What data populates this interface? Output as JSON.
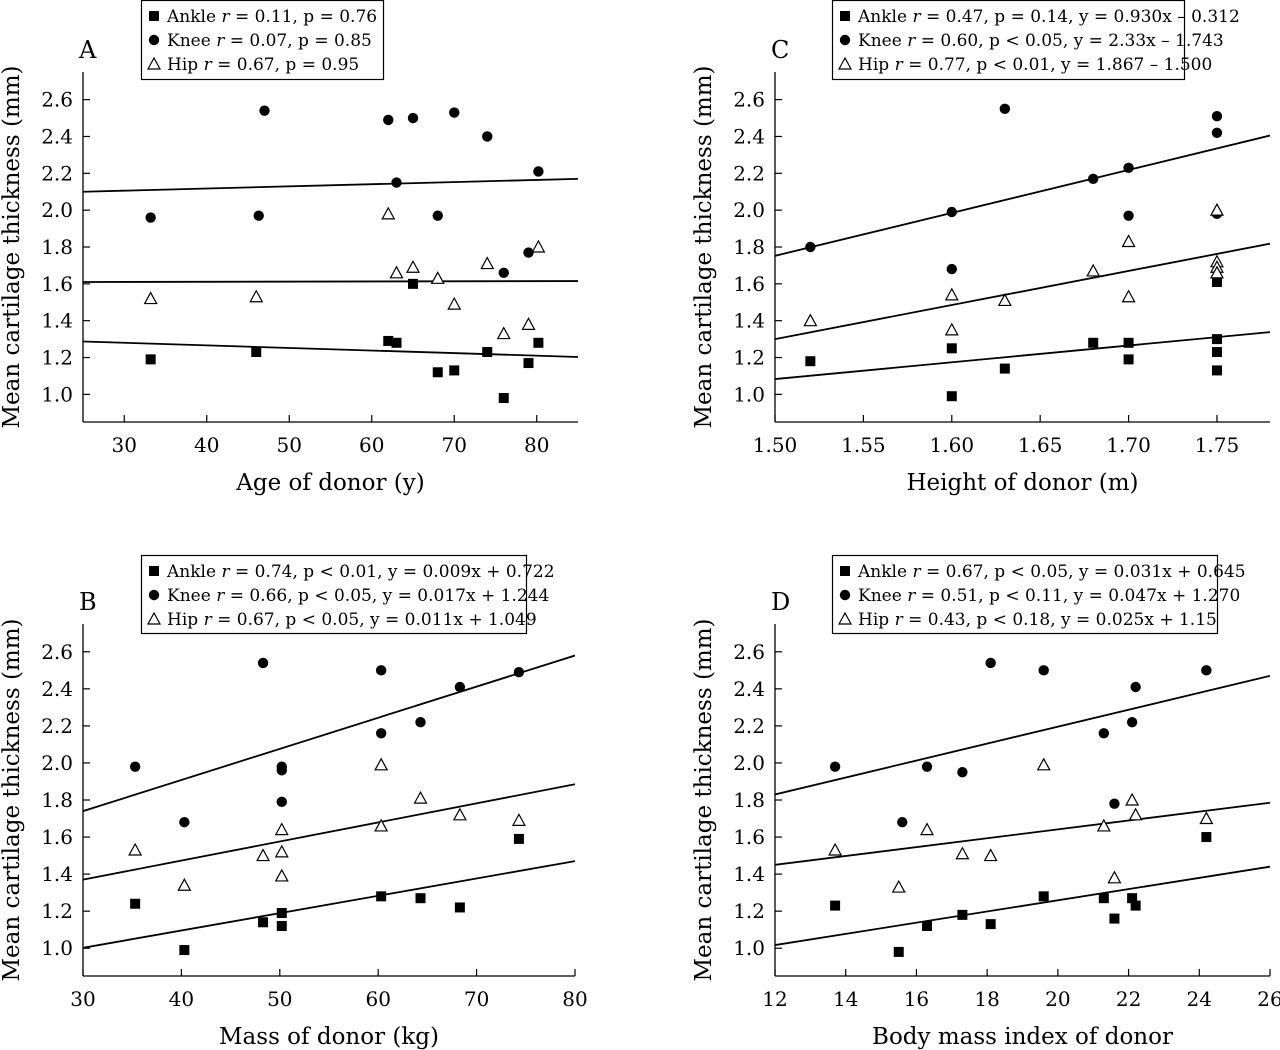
{
  "chart_data": [
    {
      "type": "scatter",
      "panel": "A",
      "xlabel": "Age of donor (y)",
      "ylabel": "Mean cartilage thickness (mm)",
      "xlim": [
        25,
        85
      ],
      "ylim": [
        0.85,
        2.75
      ],
      "xticks": [
        30,
        40,
        50,
        60,
        70,
        80
      ],
      "yticks": [
        1.0,
        1.2,
        1.4,
        1.6,
        1.8,
        2.0,
        2.2,
        2.4,
        2.6
      ],
      "legend": [
        {
          "series": "Ankle",
          "stat": " = 0.11, p = 0.76"
        },
        {
          "series": "Knee",
          "stat": " = 0.07, p = 0.85"
        },
        {
          "series": "Hip",
          "stat": " = 0.67, p = 0.95"
        }
      ],
      "series": [
        {
          "name": "Ankle",
          "marker": "square",
          "points": [
            [
              33.2,
              1.19
            ],
            [
              46,
              1.23
            ],
            [
              62,
              1.29
            ],
            [
              63,
              1.28
            ],
            [
              65,
              1.6
            ],
            [
              68,
              1.12
            ],
            [
              70,
              1.13
            ],
            [
              74,
              1.23
            ],
            [
              76,
              0.98
            ],
            [
              79,
              1.17
            ],
            [
              80.2,
              1.28
            ]
          ],
          "fit": [
            [
              25,
              1.287
            ],
            [
              85,
              1.203
            ]
          ]
        },
        {
          "name": "Knee",
          "marker": "circle",
          "points": [
            [
              33.2,
              1.96
            ],
            [
              46.3,
              1.97
            ],
            [
              47,
              2.54
            ],
            [
              62,
              2.49
            ],
            [
              63,
              2.15
            ],
            [
              65,
              2.5
            ],
            [
              68,
              1.97
            ],
            [
              70,
              2.53
            ],
            [
              74,
              2.4
            ],
            [
              76,
              1.66
            ],
            [
              79,
              1.77
            ],
            [
              80.2,
              2.21
            ]
          ],
          "fit": [
            [
              25,
              2.1
            ],
            [
              85,
              2.17
            ]
          ]
        },
        {
          "name": "Hip",
          "marker": "triangle",
          "points": [
            [
              33.2,
              1.52
            ],
            [
              46,
              1.53
            ],
            [
              62,
              1.98
            ],
            [
              63,
              1.66
            ],
            [
              65,
              1.69
            ],
            [
              68,
              1.63
            ],
            [
              70,
              1.49
            ],
            [
              74,
              1.71
            ],
            [
              76,
              1.33
            ],
            [
              79,
              1.38
            ],
            [
              80.2,
              1.8
            ]
          ],
          "fit": [
            [
              25,
              1.61
            ],
            [
              85,
              1.615
            ]
          ]
        }
      ]
    },
    {
      "type": "scatter",
      "panel": "C",
      "xlabel": "Height of donor (m)",
      "ylabel": "Mean cartilage thickness (mm)",
      "xlim": [
        1.5,
        1.78
      ],
      "ylim": [
        0.85,
        2.75
      ],
      "xticks": [
        "1.50",
        "1.55",
        "1.60",
        "1.65",
        "1.70",
        "1.75"
      ],
      "yticks": [
        1.0,
        1.2,
        1.4,
        1.6,
        1.8,
        2.0,
        2.2,
        2.4,
        2.6
      ],
      "legend": [
        {
          "series": "Ankle",
          "stat": " = 0.47, p = 0.14, y = 0.930x – 0.312"
        },
        {
          "series": "Knee",
          "stat": " = 0.60, p < 0.05, y = 2.33x – 1.743"
        },
        {
          "series": "Hip",
          "stat": " = 0.77, p < 0.01, y = 1.867 – 1.500"
        }
      ],
      "series": [
        {
          "name": "Ankle",
          "marker": "square",
          "points": [
            [
              1.52,
              1.18
            ],
            [
              1.6,
              1.25
            ],
            [
              1.6,
              0.99
            ],
            [
              1.63,
              1.14
            ],
            [
              1.68,
              1.28
            ],
            [
              1.7,
              1.28
            ],
            [
              1.7,
              1.19
            ],
            [
              1.75,
              1.61
            ],
            [
              1.75,
              1.3
            ],
            [
              1.75,
              1.23
            ],
            [
              1.75,
              1.13
            ]
          ],
          "fit": [
            [
              1.5,
              1.083
            ],
            [
              1.78,
              1.338
            ]
          ]
        },
        {
          "name": "Knee",
          "marker": "circle",
          "points": [
            [
              1.52,
              1.8
            ],
            [
              1.6,
              1.99
            ],
            [
              1.6,
              1.68
            ],
            [
              1.63,
              2.55
            ],
            [
              1.68,
              2.17
            ],
            [
              1.7,
              2.23
            ],
            [
              1.7,
              1.97
            ],
            [
              1.75,
              2.51
            ],
            [
              1.75,
              2.42
            ],
            [
              1.75,
              1.98
            ]
          ],
          "fit": [
            [
              1.5,
              1.752
            ],
            [
              1.78,
              2.405
            ]
          ]
        },
        {
          "name": "Hip",
          "marker": "triangle",
          "points": [
            [
              1.52,
              1.4
            ],
            [
              1.6,
              1.54
            ],
            [
              1.6,
              1.35
            ],
            [
              1.63,
              1.51
            ],
            [
              1.68,
              1.67
            ],
            [
              1.7,
              1.83
            ],
            [
              1.7,
              1.53
            ],
            [
              1.75,
              2.0
            ],
            [
              1.75,
              1.72
            ],
            [
              1.75,
              1.69
            ],
            [
              1.75,
              1.66
            ]
          ],
          "fit": [
            [
              1.5,
              1.3
            ],
            [
              1.78,
              1.818
            ]
          ]
        }
      ]
    },
    {
      "type": "scatter",
      "panel": "B",
      "xlabel": "Mass of donor (kg)",
      "ylabel": "Mean cartilage thickness (mm)",
      "xlim": [
        30,
        80
      ],
      "ylim": [
        0.85,
        2.75
      ],
      "xticks": [
        30,
        40,
        50,
        60,
        70,
        80
      ],
      "yticks": [
        1.0,
        1.2,
        1.4,
        1.6,
        1.8,
        2.0,
        2.2,
        2.4,
        2.6
      ],
      "legend": [
        {
          "series": "Ankle",
          "stat": " = 0.74, p < 0.01, y = 0.009x + 0.722"
        },
        {
          "series": "Knee",
          "stat": " = 0.66, p < 0.05, y = 0.017x + 1.244"
        },
        {
          "series": "Hip",
          "stat": " = 0.67, p < 0.05, y = 0.011x + 1.049"
        }
      ],
      "series": [
        {
          "name": "Ankle",
          "marker": "square",
          "points": [
            [
              35.3,
              1.24
            ],
            [
              40.3,
              0.99
            ],
            [
              48.3,
              1.14
            ],
            [
              50.2,
              1.19
            ],
            [
              50.2,
              1.12
            ],
            [
              60.3,
              1.28
            ],
            [
              64.3,
              1.27
            ],
            [
              68.3,
              1.22
            ],
            [
              74.3,
              1.59
            ]
          ],
          "fit": [
            [
              30,
              1.002
            ],
            [
              80,
              1.47
            ]
          ]
        },
        {
          "name": "Knee",
          "marker": "circle",
          "points": [
            [
              35.3,
              1.98
            ],
            [
              40.3,
              1.68
            ],
            [
              48.3,
              2.54
            ],
            [
              50.2,
              1.98
            ],
            [
              50.2,
              1.96
            ],
            [
              50.2,
              1.79
            ],
            [
              60.3,
              2.5
            ],
            [
              60.3,
              2.16
            ],
            [
              64.3,
              2.22
            ],
            [
              68.3,
              2.41
            ],
            [
              74.3,
              2.49
            ]
          ],
          "fit": [
            [
              30,
              1.74
            ],
            [
              80,
              2.58
            ]
          ]
        },
        {
          "name": "Hip",
          "marker": "triangle",
          "points": [
            [
              35.3,
              1.53
            ],
            [
              40.3,
              1.34
            ],
            [
              48.3,
              1.5
            ],
            [
              50.2,
              1.64
            ],
            [
              50.2,
              1.52
            ],
            [
              50.2,
              1.39
            ],
            [
              60.3,
              1.66
            ],
            [
              60.3,
              1.99
            ],
            [
              64.3,
              1.81
            ],
            [
              68.3,
              1.72
            ],
            [
              74.3,
              1.69
            ]
          ],
          "fit": [
            [
              30,
              1.37
            ],
            [
              80,
              1.885
            ]
          ]
        }
      ]
    },
    {
      "type": "scatter",
      "panel": "D",
      "xlabel": "Body mass index of donor",
      "ylabel": "Mean cartilage thickness (mm)",
      "xlim": [
        12,
        26
      ],
      "ylim": [
        0.85,
        2.75
      ],
      "xticks": [
        12,
        14,
        16,
        18,
        20,
        22,
        24,
        26
      ],
      "yticks": [
        1.0,
        1.2,
        1.4,
        1.6,
        1.8,
        2.0,
        2.2,
        2.4,
        2.6
      ],
      "legend": [
        {
          "series": "Ankle",
          "stat": " = 0.67, p < 0.05, y = 0.031x + 0.645"
        },
        {
          "series": "Knee",
          "stat": " = 0.51, p < 0.11, y = 0.047x + 1.270"
        },
        {
          "series": "Hip",
          "stat": " = 0.43, p < 0.18, y = 0.025x + 1.15"
        }
      ],
      "series": [
        {
          "name": "Ankle",
          "marker": "square",
          "points": [
            [
              13.7,
              1.23
            ],
            [
              15.5,
              0.98
            ],
            [
              16.3,
              1.12
            ],
            [
              17.3,
              1.18
            ],
            [
              18.1,
              1.13
            ],
            [
              19.6,
              1.28
            ],
            [
              21.3,
              1.27
            ],
            [
              21.6,
              1.16
            ],
            [
              22.1,
              1.27
            ],
            [
              22.2,
              1.23
            ],
            [
              24.2,
              1.6
            ]
          ],
          "fit": [
            [
              12,
              1.017
            ],
            [
              26,
              1.44
            ]
          ]
        },
        {
          "name": "Knee",
          "marker": "circle",
          "points": [
            [
              13.7,
              1.98
            ],
            [
              15.6,
              1.68
            ],
            [
              16.3,
              1.98
            ],
            [
              17.3,
              1.95
            ],
            [
              18.1,
              2.54
            ],
            [
              19.6,
              2.5
            ],
            [
              21.3,
              2.16
            ],
            [
              21.6,
              1.78
            ],
            [
              22.1,
              2.22
            ],
            [
              22.2,
              2.41
            ],
            [
              24.2,
              2.5
            ]
          ],
          "fit": [
            [
              12,
              1.83
            ],
            [
              26,
              2.47
            ]
          ]
        },
        {
          "name": "Hip",
          "marker": "triangle",
          "points": [
            [
              13.7,
              1.53
            ],
            [
              15.5,
              1.33
            ],
            [
              16.3,
              1.64
            ],
            [
              17.3,
              1.51
            ],
            [
              18.1,
              1.5
            ],
            [
              19.6,
              1.99
            ],
            [
              21.3,
              1.66
            ],
            [
              21.6,
              1.38
            ],
            [
              22.1,
              1.8
            ],
            [
              22.2,
              1.72
            ],
            [
              24.2,
              1.7
            ]
          ],
          "fit": [
            [
              12,
              1.45
            ],
            [
              26,
              1.785
            ]
          ]
        }
      ]
    }
  ]
}
